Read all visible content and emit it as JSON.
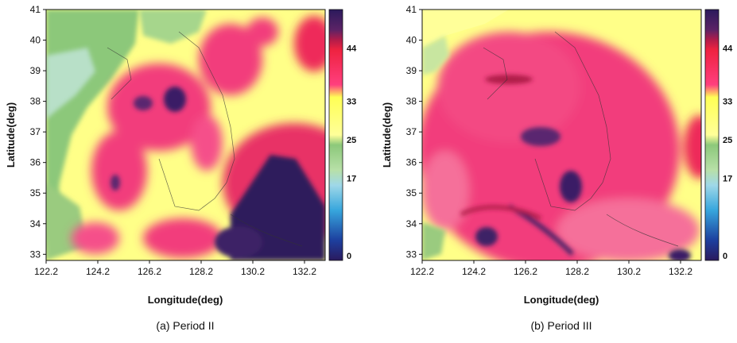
{
  "chart_data": [
    {
      "type": "heatmap",
      "caption": "(a) Period II",
      "xlabel": "Longitude(deg)",
      "ylabel": "Latitude(deg)",
      "xlim": [
        122.2,
        133.0
      ],
      "ylim": [
        32.8,
        41
      ],
      "x_ticks": [
        "122.2",
        "124.2",
        "126.2",
        "128.2",
        "130.2",
        "132.2"
      ],
      "x_tick_values": [
        122.2,
        124.2,
        126.2,
        128.2,
        130.2,
        132.2
      ],
      "y_ticks": [
        "33",
        "34",
        "35",
        "36",
        "37",
        "38",
        "39",
        "40",
        "41"
      ],
      "y_tick_values": [
        33,
        34,
        35,
        36,
        37,
        38,
        39,
        40,
        41
      ],
      "colorbar": {
        "range": [
          0,
          52
        ],
        "tick_labels": [
          "44",
          "33",
          "25",
          "17",
          "0"
        ],
        "tick_values": [
          44,
          33,
          25,
          17,
          0
        ],
        "colors": [
          "#2a1a5e",
          "#1d3f9e",
          "#37a6dd",
          "#9fd8e8",
          "#8cc87a",
          "#ffff99",
          "#ff3f7e",
          "#ee2240",
          "#2b1a5c"
        ]
      }
    },
    {
      "type": "heatmap",
      "caption": "(b) Period III",
      "xlabel": "Longitude(deg)",
      "ylabel": "Latitude(deg)",
      "xlim": [
        122.2,
        133.0
      ],
      "ylim": [
        32.8,
        41
      ],
      "x_ticks": [
        "122.2",
        "124.2",
        "126.2",
        "128.2",
        "130.2",
        "132.2"
      ],
      "x_tick_values": [
        122.2,
        124.2,
        126.2,
        128.2,
        130.2,
        132.2
      ],
      "y_ticks": [
        "33",
        "34",
        "35",
        "36",
        "37",
        "38",
        "39",
        "40",
        "41"
      ],
      "y_tick_values": [
        33,
        34,
        35,
        36,
        37,
        38,
        39,
        40,
        41
      ],
      "colorbar": {
        "range": [
          0,
          52
        ],
        "tick_labels": [
          "44",
          "33",
          "25",
          "17",
          "0"
        ],
        "tick_values": [
          44,
          33,
          25,
          17,
          0
        ],
        "colors": [
          "#2a1a5e",
          "#1d3f9e",
          "#37a6dd",
          "#9fd8e8",
          "#8cc87a",
          "#ffff99",
          "#ff3f7e",
          "#ee2240",
          "#2b1a5c"
        ]
      }
    }
  ]
}
